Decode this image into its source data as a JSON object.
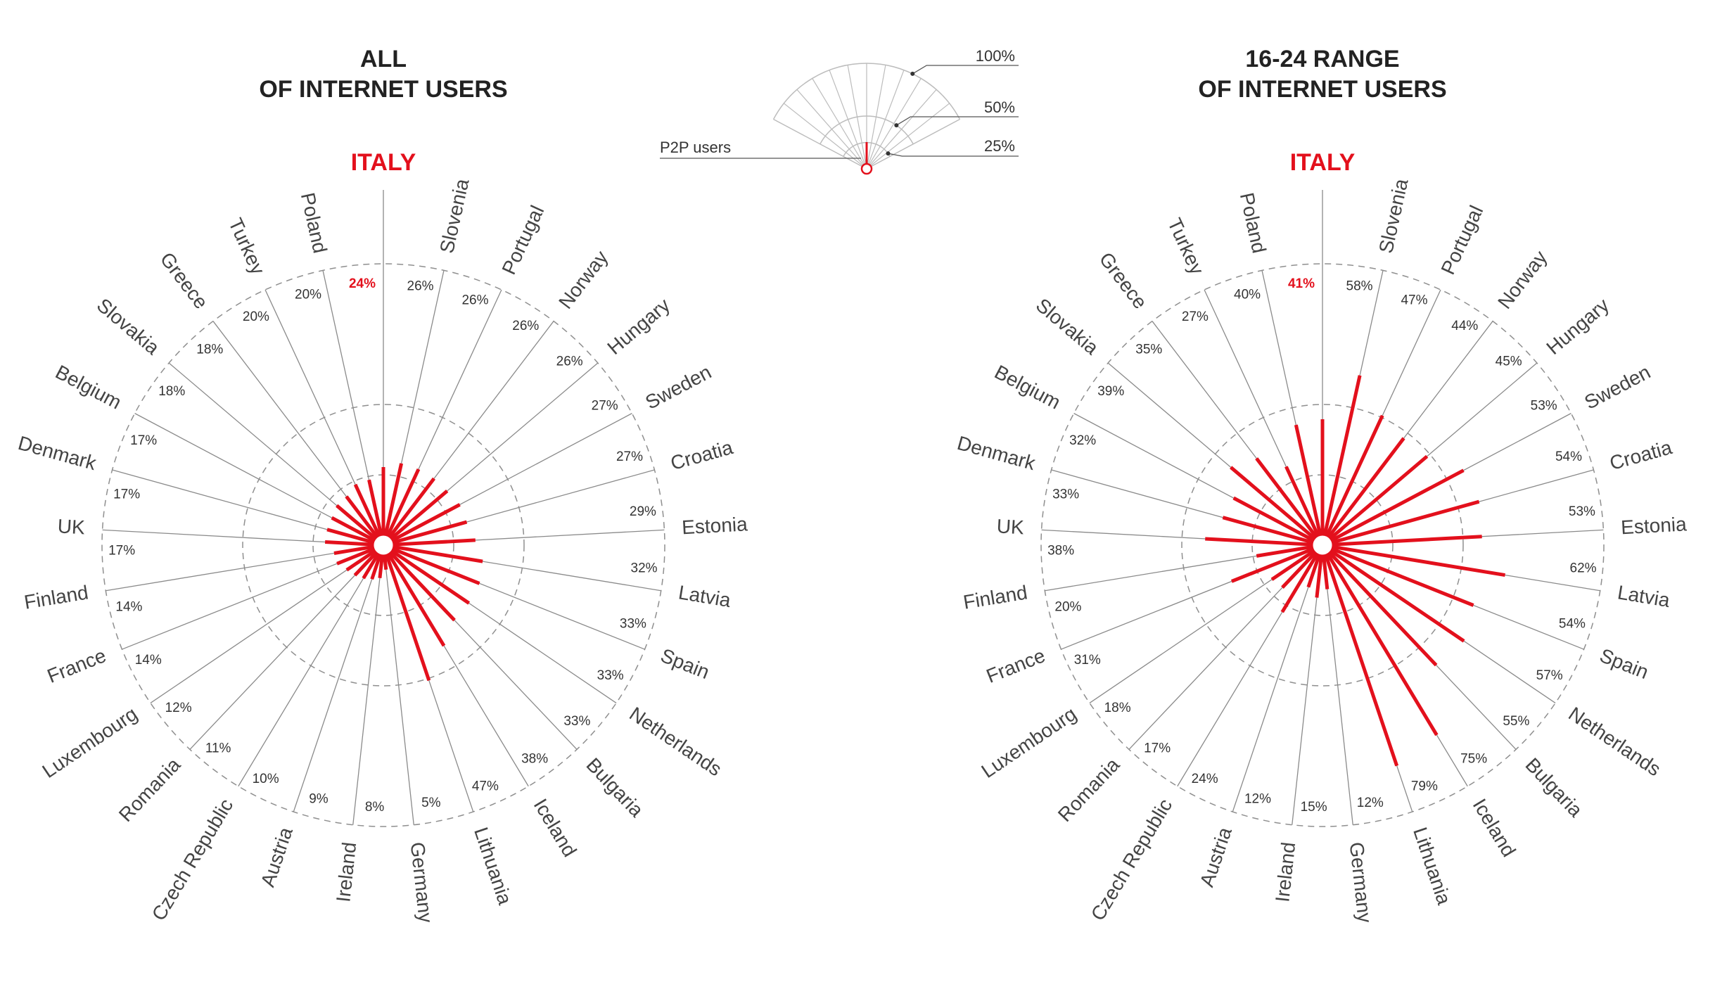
{
  "legend": {
    "levels": [
      {
        "label": "100%",
        "value": 100
      },
      {
        "label": "50%",
        "value": 50
      },
      {
        "label": "25%",
        "value": 25
      }
    ],
    "users_label": "P2P users"
  },
  "colors": {
    "accent": "#e3101c",
    "spoke": "#8a8a8a",
    "ring": "#8f8f8f",
    "text": "#333333"
  },
  "chart_data": [
    {
      "type": "radial-bar",
      "title_lines": [
        "ALL",
        "OF INTERNET USERS"
      ],
      "highlight": "ITALY",
      "highlight_value_label": "24%",
      "rings": [
        25,
        50,
        100
      ],
      "scale_max": 100,
      "categories": [
        "Slovenia",
        "Portugal",
        "Norway",
        "Hungary",
        "Sweden",
        "Croatia",
        "Estonia",
        "Latvia",
        "Spain",
        "Netherlands",
        "Bulgaria",
        "Iceland",
        "Lithuania",
        "Germany",
        "Ireland",
        "Austria",
        "Czech Republic",
        "Romania",
        "Luxembourg",
        "France",
        "Finland",
        "UK",
        "Denmark",
        "Belgium",
        "Slovakia",
        "Greece",
        "Turkey",
        "Poland"
      ],
      "values": [
        26,
        26,
        26,
        26,
        27,
        27,
        29,
        32,
        33,
        33,
        33,
        38,
        47,
        5,
        8,
        9,
        10,
        11,
        12,
        14,
        14,
        17,
        17,
        17,
        18,
        18,
        20,
        20
      ],
      "value_labels": [
        "26%",
        "26%",
        "26%",
        "26%",
        "27%",
        "27%",
        "29%",
        "32%",
        "33%",
        "33%",
        "33%",
        "38%",
        "47%",
        "5%",
        "8%",
        "9%",
        "10%",
        "11%",
        "12%",
        "14%",
        "14%",
        "17%",
        "17%",
        "17%",
        "18%",
        "18%",
        "20%",
        "20%"
      ],
      "highlight_value": 24
    },
    {
      "type": "radial-bar",
      "title_lines": [
        "16-24 RANGE",
        "OF INTERNET USERS"
      ],
      "highlight": "ITALY",
      "highlight_value_label": "41%",
      "rings": [
        25,
        50,
        100
      ],
      "scale_max": 100,
      "categories": [
        "Slovenia",
        "Portugal",
        "Norway",
        "Hungary",
        "Sweden",
        "Croatia",
        "Estonia",
        "Latvia",
        "Spain",
        "Netherlands",
        "Bulgaria",
        "Iceland",
        "Lithuania",
        "Germany",
        "Ireland",
        "Austria",
        "Czech Republic",
        "Romania",
        "Luxembourg",
        "France",
        "Finland",
        "UK",
        "Denmark",
        "Belgium",
        "Slovakia",
        "Greece",
        "Turkey",
        "Poland"
      ],
      "values": [
        58,
        47,
        44,
        45,
        53,
        54,
        53,
        62,
        54,
        57,
        55,
        75,
        79,
        12,
        15,
        12,
        24,
        17,
        18,
        31,
        20,
        38,
        33,
        32,
        39,
        35,
        27,
        40
      ],
      "value_labels": [
        "58%",
        "47%",
        "44%",
        "45%",
        "53%",
        "54%",
        "53%",
        "62%",
        "54%",
        "57%",
        "55%",
        "75%",
        "79%",
        "12%",
        "15%",
        "12%",
        "24%",
        "17%",
        "18%",
        "31%",
        "20%",
        "38%",
        "33%",
        "32%",
        "39%",
        "35%",
        "27%",
        "40%"
      ],
      "highlight_value": 41
    }
  ]
}
